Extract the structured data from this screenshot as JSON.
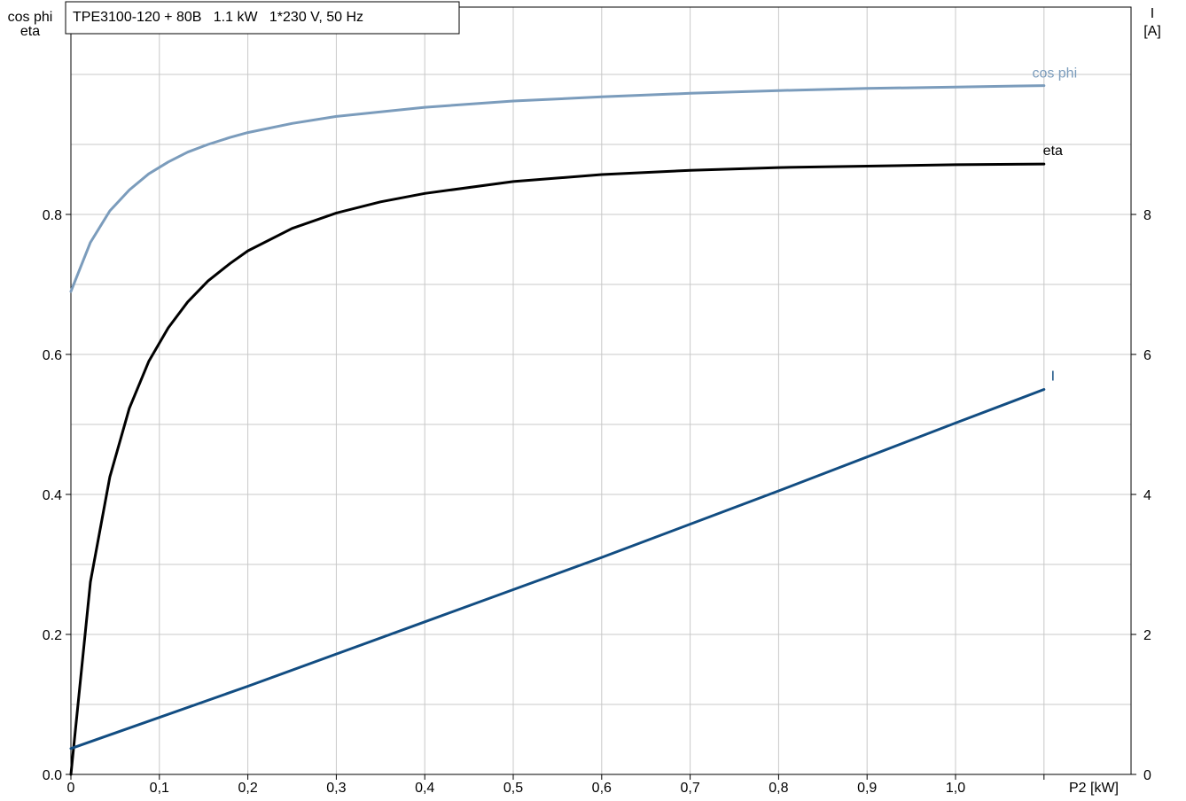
{
  "chart_data": {
    "type": "line",
    "title": "TPE3100-120 + 80B   1.1 kW   1*230 V, 50 Hz",
    "xlabel": "P2 [kW]",
    "ylabel_left": [
      "cos phi",
      "eta"
    ],
    "ylabel_right": [
      "I",
      "[A]"
    ],
    "xlim": [
      0,
      1.2
    ],
    "ylim_left": [
      0,
      1.0
    ],
    "ylim_right": [
      0,
      10
    ],
    "x_ticks": [
      "0",
      "0,1",
      "0,2",
      "0,3",
      "0,4",
      "0,5",
      "0,6",
      "0,7",
      "0,8",
      "0,9",
      "1,0"
    ],
    "y_left_ticks": [
      "0.0",
      "0.2",
      "0.4",
      "0.6",
      "0.8"
    ],
    "y_right_ticks": [
      "0",
      "2",
      "4",
      "6",
      "8"
    ],
    "grid": true,
    "series": [
      {
        "name": "cos phi",
        "axis": "left",
        "color": "#7b9cbc",
        "x": [
          0,
          0.022,
          0.044,
          0.066,
          0.088,
          0.11,
          0.132,
          0.155,
          0.18,
          0.2,
          0.25,
          0.3,
          0.4,
          0.5,
          0.6,
          0.7,
          0.8,
          0.9,
          1.0,
          1.1
        ],
        "y": [
          0.69,
          0.76,
          0.805,
          0.835,
          0.858,
          0.875,
          0.889,
          0.9,
          0.91,
          0.917,
          0.93,
          0.94,
          0.953,
          0.962,
          0.968,
          0.973,
          0.977,
          0.98,
          0.982,
          0.984
        ]
      },
      {
        "name": "eta",
        "axis": "left",
        "color": "#000000",
        "x": [
          0,
          0.022,
          0.044,
          0.066,
          0.088,
          0.11,
          0.132,
          0.155,
          0.18,
          0.2,
          0.25,
          0.3,
          0.35,
          0.4,
          0.5,
          0.6,
          0.7,
          0.8,
          0.9,
          1.0,
          1.1
        ],
        "y": [
          0.0,
          0.275,
          0.425,
          0.523,
          0.59,
          0.638,
          0.675,
          0.705,
          0.73,
          0.748,
          0.78,
          0.802,
          0.818,
          0.83,
          0.847,
          0.857,
          0.863,
          0.867,
          0.869,
          0.871,
          0.872
        ]
      },
      {
        "name": "I",
        "axis": "right",
        "color": "#124d82",
        "x": [
          0,
          0.2,
          0.4,
          0.6,
          0.8,
          1.0,
          1.1
        ],
        "y": [
          0.37,
          1.26,
          2.18,
          3.1,
          4.05,
          5.02,
          5.5
        ]
      }
    ]
  }
}
